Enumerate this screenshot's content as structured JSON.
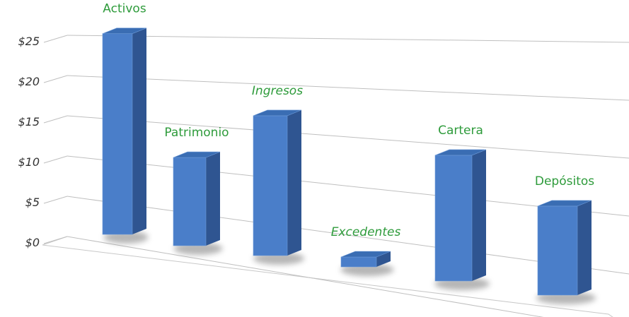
{
  "chart_data": {
    "type": "bar",
    "style": "3d-perspective-columns",
    "title": "",
    "xlabel": "",
    "ylabel": "",
    "ylim": [
      0,
      25
    ],
    "ytick_step": 5,
    "ytick_labels": [
      "$0",
      "$5",
      "$10",
      "$15",
      "$20",
      "$25"
    ],
    "grid": true,
    "legend": "none",
    "categories": [
      "Activos",
      "Patrimonio",
      "Ingresos",
      "Excedentes",
      "Cartera",
      "Depósitos"
    ],
    "values": [
      24,
      10,
      15,
      1,
      12,
      8
    ],
    "colors": {
      "front": "#4a7ec9",
      "side": "#2f5591",
      "top": "#3a6db3",
      "label": "#2e9b3b",
      "grid": "#bfbfbf"
    }
  }
}
